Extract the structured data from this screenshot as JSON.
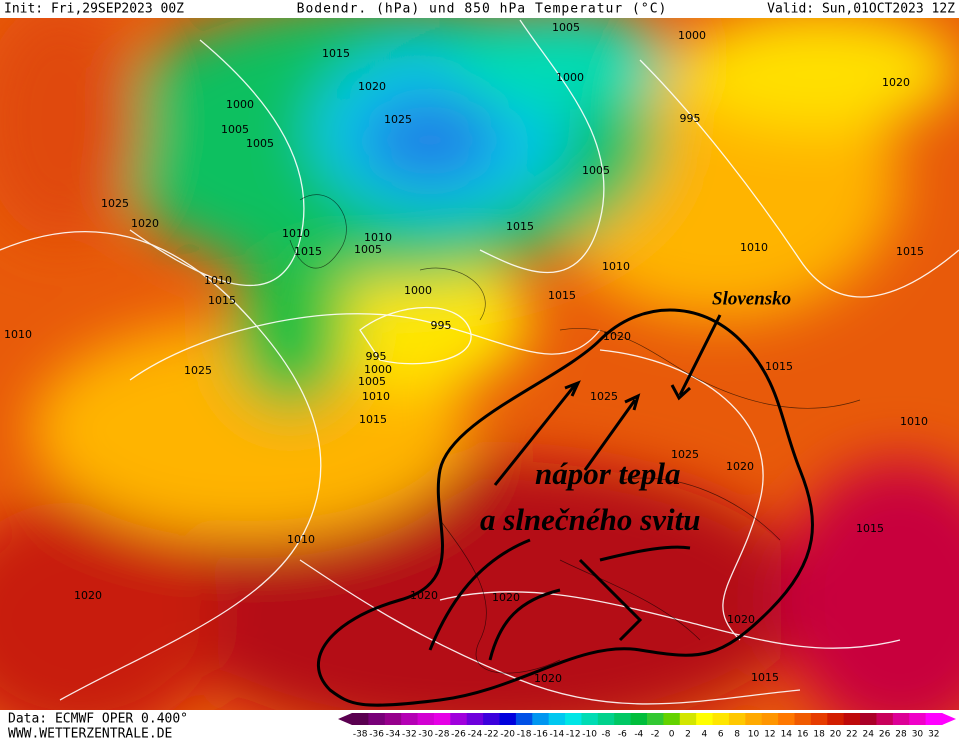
{
  "header": {
    "init": "Init: Fri,29SEP2023 00Z",
    "title": "Bodendr. (hPa) und 850 hPa Temperatur (°C)",
    "valid": "Valid: Sun,01OCT2023 12Z"
  },
  "isobar_labels": [
    "1005",
    "1000",
    "1015",
    "1020",
    "1000",
    "1000",
    "1005",
    "1005",
    "1025",
    "995",
    "1020",
    "1005",
    "1025",
    "1020",
    "1015",
    "1010",
    "1010",
    "1005",
    "1015",
    "1010",
    "1015",
    "1010",
    "1010",
    "1015",
    "1000",
    "1015",
    "995",
    "1010",
    "1020",
    "1025",
    "995",
    "1000",
    "1005",
    "1010",
    "1015",
    "1015",
    "1025",
    "1010",
    "1025",
    "1020",
    "1015",
    "1010",
    "1020",
    "1020",
    "1020",
    "1020",
    "1020",
    "1015"
  ],
  "annotations": {
    "place": "Slovensko",
    "line1": "nápor tepla",
    "line2": "a slnečného svitu"
  },
  "footer": {
    "source": "Data: ECMWF OPER 0.400°",
    "site": "WWW.WETTERZENTRALE.DE"
  },
  "legend": {
    "ticks": [
      -38,
      -36,
      -34,
      -32,
      -30,
      -28,
      -26,
      -24,
      -22,
      -20,
      -18,
      -16,
      -14,
      -12,
      -10,
      -8,
      -6,
      -4,
      -2,
      0,
      2,
      4,
      6,
      8,
      10,
      12,
      14,
      16,
      18,
      20,
      22,
      24,
      26,
      28,
      30,
      32
    ],
    "colors": [
      "#5a0050",
      "#780078",
      "#96008c",
      "#b400b4",
      "#d200d2",
      "#e600e6",
      "#a000dc",
      "#6e00dc",
      "#3c00dc",
      "#0000dc",
      "#0050e6",
      "#0096f0",
      "#00c8f0",
      "#00e6e6",
      "#00dcb4",
      "#00d28c",
      "#00c864",
      "#00be3c",
      "#32c832",
      "#64d200",
      "#d2e600",
      "#ffff00",
      "#ffe600",
      "#ffc800",
      "#ffaa00",
      "#ff9600",
      "#ff7800",
      "#f05a00",
      "#e63c00",
      "#d21e00",
      "#be0a0a",
      "#aa0028",
      "#c8005a",
      "#dc0096",
      "#f000c8",
      "#ff00ff"
    ]
  }
}
